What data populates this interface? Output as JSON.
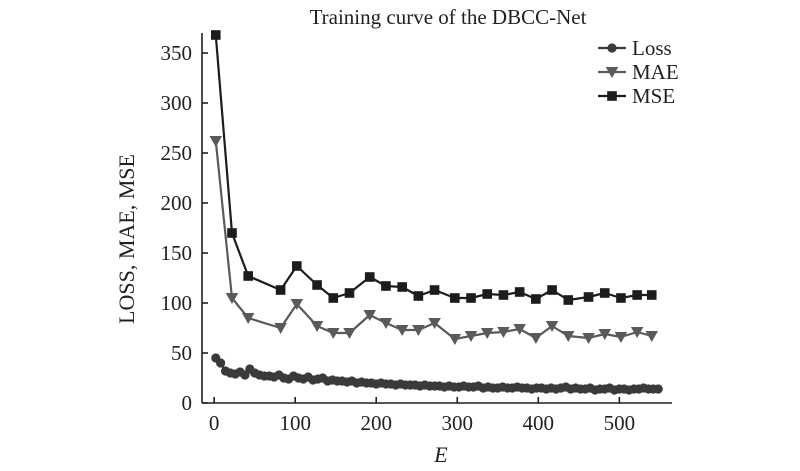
{
  "chart_data": {
    "type": "line",
    "title": "Training curve of the DBCC-Net",
    "xlabel": "E",
    "ylabel": "LOSS, MAE, MSE",
    "xlim": [
      -15,
      565
    ],
    "ylim": [
      0,
      370
    ],
    "xticks": [
      0,
      100,
      200,
      300,
      400,
      500
    ],
    "yticks": [
      0,
      50,
      100,
      150,
      200,
      250,
      300,
      350
    ],
    "grid": false,
    "legend_position": "top-right",
    "series": [
      {
        "name": "Loss",
        "marker": "circle",
        "color": "#3a3a3a",
        "x": [
          2,
          8,
          14,
          20,
          26,
          32,
          38,
          44,
          50,
          56,
          62,
          68,
          74,
          80,
          86,
          92,
          98,
          104,
          110,
          116,
          122,
          128,
          134,
          140,
          146,
          152,
          158,
          164,
          170,
          176,
          182,
          188,
          194,
          200,
          206,
          212,
          218,
          224,
          230,
          236,
          242,
          248,
          254,
          260,
          266,
          272,
          278,
          284,
          290,
          296,
          302,
          308,
          314,
          320,
          326,
          332,
          338,
          344,
          350,
          356,
          362,
          368,
          374,
          380,
          386,
          392,
          398,
          404,
          410,
          416,
          422,
          428,
          434,
          440,
          446,
          452,
          458,
          464,
          470,
          476,
          482,
          488,
          494,
          500,
          506,
          512,
          518,
          524,
          530,
          536,
          542,
          548
        ],
        "y": [
          45,
          40,
          32,
          30,
          29,
          31,
          28,
          34,
          30,
          28,
          27,
          27,
          26,
          28,
          25,
          24,
          27,
          25,
          24,
          26,
          23,
          24,
          25,
          22,
          23,
          22,
          22,
          21,
          22,
          20,
          21,
          20,
          20,
          19,
          20,
          19,
          19,
          18,
          19,
          18,
          18,
          18,
          17,
          18,
          17,
          17,
          17,
          16,
          17,
          16,
          16,
          17,
          16,
          16,
          17,
          15,
          16,
          15,
          15,
          16,
          15,
          15,
          16,
          15,
          15,
          14,
          15,
          15,
          14,
          15,
          14,
          15,
          16,
          14,
          15,
          14,
          14,
          15,
          13,
          14,
          14,
          15,
          13,
          14,
          14,
          13,
          14,
          14,
          15,
          14,
          14,
          14
        ]
      },
      {
        "name": "MAE",
        "marker": "triangle-down",
        "color": "#5a5a5a",
        "x": [
          2,
          22,
          42,
          82,
          102,
          127,
          147,
          167,
          192,
          212,
          232,
          252,
          272,
          297,
          317,
          337,
          357,
          377,
          397,
          417,
          437,
          462,
          482,
          502,
          522,
          540
        ],
        "y": [
          262,
          105,
          85,
          75,
          99,
          77,
          70,
          70,
          88,
          80,
          73,
          73,
          80,
          64,
          67,
          70,
          71,
          74,
          65,
          77,
          67,
          65,
          69,
          66,
          71,
          67
        ]
      },
      {
        "name": "MSE",
        "marker": "square",
        "color": "#1c1c1c",
        "x": [
          2,
          22,
          42,
          82,
          102,
          127,
          147,
          167,
          192,
          212,
          232,
          252,
          272,
          297,
          317,
          337,
          357,
          377,
          397,
          417,
          437,
          462,
          482,
          502,
          522,
          540
        ],
        "y": [
          368,
          170,
          127,
          113,
          137,
          118,
          105,
          110,
          126,
          117,
          116,
          107,
          113,
          105,
          105,
          109,
          108,
          111,
          104,
          113,
          103,
          106,
          110,
          105,
          108,
          108
        ]
      }
    ]
  }
}
